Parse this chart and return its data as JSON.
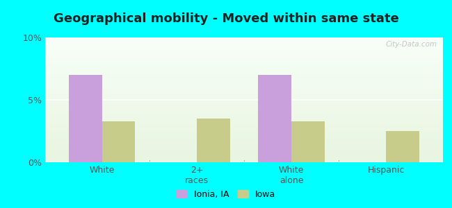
{
  "title": "Geographical mobility - Moved within same state",
  "categories": [
    "White",
    "2+\nraces",
    "White\nalone",
    "Hispanic"
  ],
  "ionia_values": [
    7.0,
    0.0,
    7.0,
    0.0
  ],
  "iowa_values": [
    3.3,
    3.5,
    3.3,
    2.5
  ],
  "ionia_color": "#c9a0dc",
  "iowa_color": "#c8cc8a",
  "ylim": [
    0,
    10
  ],
  "yticks": [
    0,
    5,
    10
  ],
  "ytick_labels": [
    "0%",
    "5%",
    "10%"
  ],
  "background_color": "#00ffff",
  "plot_bg_top": "#e8f5e0",
  "plot_bg_bottom": "#f8fff8",
  "bar_width": 0.35,
  "legend_label_ionia": "Ionia, IA",
  "legend_label_iowa": "Iowa",
  "title_fontsize": 13,
  "watermark": "City-Data.com"
}
